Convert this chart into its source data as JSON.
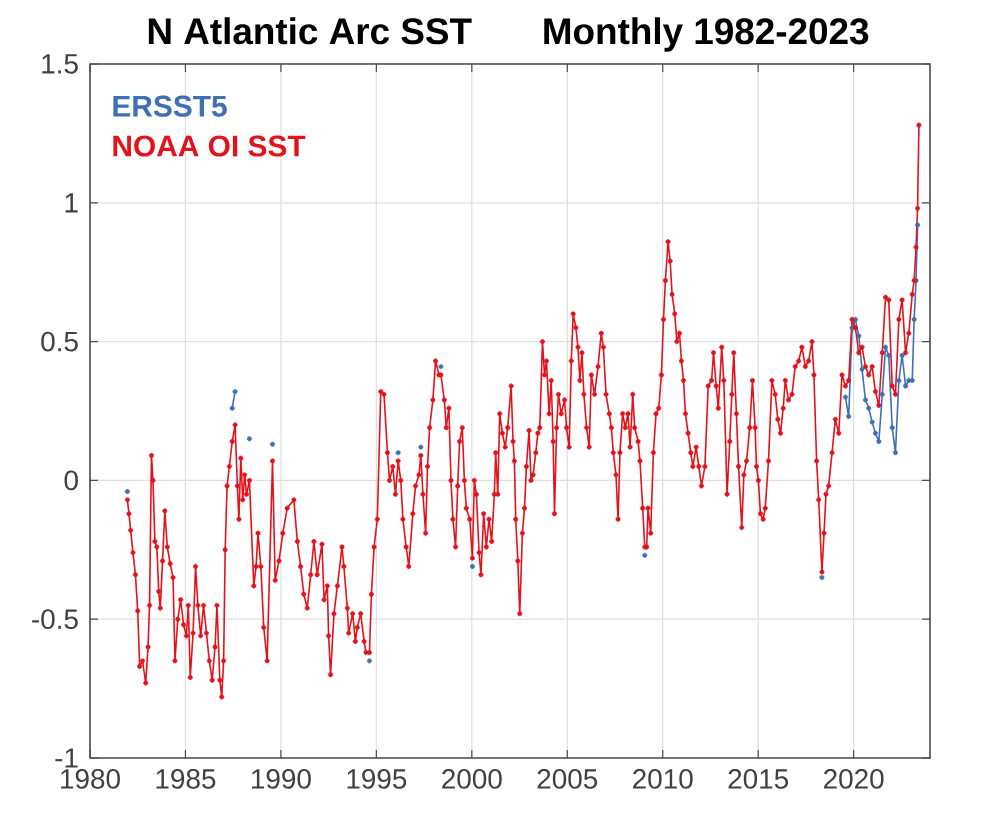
{
  "chart_data": {
    "type": "line",
    "title": "N Atlantic Arc SST",
    "subtitle": "Monthly 1982-2023",
    "x": [
      1981.96,
      1982.04,
      1982.13,
      1982.25,
      1982.38,
      1982.5,
      1982.6,
      1982.75,
      1982.92,
      1983.04,
      1983.12,
      1983.22,
      1983.3,
      1983.4,
      1983.5,
      1983.6,
      1983.68,
      1983.8,
      1983.92,
      1984.05,
      1984.2,
      1984.35,
      1984.45,
      1984.6,
      1984.75,
      1984.9,
      1985.05,
      1985.15,
      1985.25,
      1985.4,
      1985.53,
      1985.65,
      1985.8,
      1985.95,
      1986.1,
      1986.25,
      1986.4,
      1986.55,
      1986.65,
      1986.8,
      1986.9,
      1987.0,
      1987.08,
      1987.18,
      1987.3,
      1987.45,
      1987.6,
      1987.72,
      1987.8,
      1987.9,
      1988.0,
      1988.1,
      1988.2,
      1988.35,
      1988.58,
      1988.7,
      1988.8,
      1988.95,
      1989.1,
      1989.28,
      1989.56,
      1989.7,
      1989.9,
      1990.1,
      1990.33,
      1990.68,
      1990.86,
      1991.03,
      1991.2,
      1991.38,
      1991.56,
      1991.73,
      1991.9,
      1992.15,
      1992.26,
      1992.43,
      1992.5,
      1992.6,
      1992.78,
      1992.96,
      1993.2,
      1993.3,
      1993.48,
      1993.55,
      1993.76,
      1993.9,
      1994.0,
      1994.18,
      1994.36,
      1994.46,
      1994.64,
      1994.74,
      1994.88,
      1995.05,
      1995.23,
      1995.4,
      1995.58,
      1995.69,
      1995.86,
      1996.0,
      1996.14,
      1996.28,
      1996.39,
      1996.56,
      1996.7,
      1996.91,
      1997.05,
      1997.23,
      1997.33,
      1997.44,
      1997.58,
      1997.68,
      1997.79,
      1997.96,
      1998.1,
      1998.28,
      1998.38,
      1998.56,
      1998.66,
      1998.8,
      1998.91,
      1999.01,
      1999.15,
      1999.26,
      1999.36,
      1999.5,
      1999.61,
      1999.71,
      1999.89,
      2000.03,
      2000.13,
      2000.24,
      2000.38,
      2000.48,
      2000.62,
      2000.76,
      2000.9,
      2001.04,
      2001.18,
      2001.25,
      2001.36,
      2001.46,
      2001.6,
      2001.75,
      2001.88,
      2002.06,
      2002.16,
      2002.23,
      2002.3,
      2002.41,
      2002.51,
      2002.65,
      2002.76,
      2002.86,
      2003.0,
      2003.1,
      2003.21,
      2003.35,
      2003.46,
      2003.56,
      2003.7,
      2003.81,
      2003.91,
      2004.05,
      2004.16,
      2004.26,
      2004.33,
      2004.44,
      2004.54,
      2004.68,
      2004.86,
      2004.96,
      2005.1,
      2005.21,
      2005.31,
      2005.45,
      2005.56,
      2005.66,
      2005.77,
      2005.87,
      2006.01,
      2006.15,
      2006.26,
      2006.43,
      2006.61,
      2006.78,
      2006.89,
      2007.03,
      2007.2,
      2007.31,
      2007.41,
      2007.55,
      2007.66,
      2007.76,
      2007.9,
      2008.04,
      2008.18,
      2008.29,
      2008.43,
      2008.53,
      2008.71,
      2008.81,
      2008.95,
      2009.06,
      2009.16,
      2009.23,
      2009.37,
      2009.51,
      2009.65,
      2009.79,
      2009.93,
      2010.04,
      2010.14,
      2010.28,
      2010.39,
      2010.49,
      2010.63,
      2010.74,
      2010.88,
      2010.98,
      2011.09,
      2011.19,
      2011.33,
      2011.47,
      2011.58,
      2011.75,
      2011.89,
      2012.03,
      2012.21,
      2012.38,
      2012.56,
      2012.66,
      2012.8,
      2012.91,
      2013.09,
      2013.2,
      2013.37,
      2013.51,
      2013.62,
      2013.72,
      2013.86,
      2013.97,
      2014.14,
      2014.25,
      2014.39,
      2014.56,
      2014.7,
      2014.84,
      2014.91,
      2015.01,
      2015.12,
      2015.26,
      2015.37,
      2015.54,
      2015.72,
      2015.89,
      2016.03,
      2016.17,
      2016.31,
      2016.42,
      2016.59,
      2016.77,
      2016.94,
      2017.12,
      2017.29,
      2017.47,
      2017.64,
      2017.82,
      2017.92,
      2018.06,
      2018.17,
      2018.34,
      2018.45,
      2018.55,
      2018.69,
      2018.87,
      2019.04,
      2019.22,
      2019.39,
      2019.57,
      2019.74,
      2019.92,
      2020.09,
      2020.27,
      2020.44,
      2020.62,
      2020.79,
      2020.97,
      2021.14,
      2021.32,
      2021.5,
      2021.67,
      2021.84,
      2022.02,
      2022.19,
      2022.37,
      2022.54,
      2022.72,
      2022.89,
      2023.07,
      2023.17,
      2023.27,
      2023.35,
      2023.42
    ],
    "series": [
      {
        "name": "ERSST5",
        "color": "#3f6fb5",
        "x": [
          1981.96,
          1982.04,
          1987.45,
          1987.6,
          1987.72,
          1988.35,
          1988.58,
          1989.56,
          1989.7,
          1994.64,
          1994.74,
          1996.14,
          1996.28,
          1997.33,
          1997.44,
          1998.38,
          1998.56,
          2000.03,
          2000.13,
          2009.06,
          2009.16,
          2018.34,
          2018.45,
          2019.57,
          2019.74,
          2019.92,
          2020.09,
          2020.27,
          2020.44,
          2020.62,
          2020.79,
          2020.97,
          2021.14,
          2021.32,
          2021.5,
          2021.67,
          2021.84,
          2022.02,
          2022.19,
          2022.37,
          2022.54,
          2022.72,
          2022.89,
          2023.07,
          2023.17,
          2023.27,
          2023.35
        ],
        "values": [
          -0.04,
          null,
          0.26,
          0.32,
          null,
          0.15,
          null,
          0.13,
          null,
          -0.65,
          null,
          0.1,
          null,
          0.12,
          null,
          0.41,
          null,
          -0.31,
          null,
          -0.27,
          null,
          -0.35,
          null,
          0.3,
          0.23,
          0.55,
          0.58,
          0.52,
          0.4,
          0.29,
          0.26,
          0.21,
          0.17,
          0.14,
          0.31,
          0.48,
          0.45,
          0.19,
          0.1,
          0.36,
          0.45,
          0.34,
          0.36,
          0.36,
          0.58,
          0.72,
          0.92
        ]
      },
      {
        "name": "NOAA OI SST",
        "color": "#e3121b",
        "values": [
          -0.07,
          -0.12,
          -0.18,
          -0.26,
          -0.34,
          -0.47,
          -0.67,
          -0.65,
          -0.73,
          -0.6,
          -0.45,
          0.09,
          0.0,
          -0.22,
          -0.24,
          -0.4,
          -0.46,
          -0.29,
          -0.11,
          -0.24,
          -0.3,
          -0.35,
          -0.65,
          -0.5,
          -0.43,
          -0.52,
          -0.56,
          -0.45,
          -0.71,
          -0.55,
          -0.31,
          -0.45,
          -0.56,
          -0.45,
          -0.55,
          -0.65,
          -0.72,
          -0.6,
          -0.45,
          -0.72,
          -0.78,
          -0.65,
          -0.25,
          -0.02,
          0.05,
          0.14,
          0.2,
          -0.02,
          -0.14,
          0.08,
          -0.07,
          0.02,
          -0.05,
          0.0,
          -0.38,
          -0.31,
          -0.19,
          -0.31,
          -0.53,
          -0.65,
          0.07,
          -0.36,
          -0.29,
          -0.19,
          -0.1,
          -0.07,
          -0.22,
          -0.31,
          -0.41,
          -0.46,
          -0.34,
          -0.22,
          -0.34,
          -0.23,
          -0.43,
          -0.38,
          -0.56,
          -0.7,
          -0.48,
          -0.38,
          -0.24,
          -0.31,
          -0.46,
          -0.55,
          -0.48,
          -0.58,
          -0.53,
          -0.48,
          -0.58,
          -0.62,
          -0.62,
          -0.41,
          -0.24,
          -0.14,
          0.32,
          0.31,
          0.1,
          0.0,
          0.05,
          -0.05,
          0.07,
          0.0,
          -0.14,
          -0.24,
          -0.31,
          -0.12,
          -0.02,
          0.02,
          0.09,
          -0.05,
          -0.19,
          0.05,
          0.19,
          0.29,
          0.43,
          0.38,
          0.38,
          0.29,
          0.19,
          0.26,
          0.0,
          -0.14,
          -0.24,
          -0.02,
          0.14,
          0.19,
          0.0,
          -0.1,
          -0.14,
          -0.28,
          0.0,
          -0.05,
          -0.26,
          -0.34,
          -0.12,
          -0.24,
          -0.14,
          -0.22,
          -0.05,
          0.1,
          -0.05,
          0.24,
          0.17,
          0.12,
          0.19,
          0.34,
          0.14,
          0.07,
          -0.14,
          -0.29,
          -0.48,
          -0.19,
          -0.1,
          0.05,
          0.18,
          0.0,
          0.02,
          0.1,
          0.17,
          0.19,
          0.5,
          0.38,
          0.43,
          0.24,
          0.36,
          0.14,
          -0.12,
          0.19,
          0.31,
          0.24,
          0.29,
          0.19,
          0.12,
          0.43,
          0.6,
          0.55,
          0.48,
          0.36,
          0.46,
          0.31,
          0.19,
          0.12,
          0.38,
          0.31,
          0.41,
          0.53,
          0.48,
          0.31,
          0.24,
          0.19,
          0.1,
          0.02,
          -0.14,
          0.1,
          0.24,
          0.19,
          0.24,
          0.12,
          0.31,
          0.19,
          0.14,
          0.07,
          -0.1,
          -0.24,
          -0.24,
          -0.1,
          -0.19,
          0.1,
          0.24,
          0.26,
          0.38,
          0.58,
          0.72,
          0.86,
          0.79,
          0.67,
          0.6,
          0.5,
          0.53,
          0.43,
          0.36,
          0.24,
          0.17,
          0.1,
          0.05,
          0.12,
          0.05,
          -0.02,
          0.05,
          0.34,
          0.36,
          0.46,
          0.34,
          0.26,
          0.48,
          0.36,
          -0.05,
          0.14,
          0.31,
          0.46,
          0.24,
          0.05,
          -0.17,
          0.02,
          0.07,
          0.19,
          0.36,
          0.19,
          0.05,
          0.0,
          -0.12,
          -0.14,
          -0.1,
          0.07,
          0.36,
          0.31,
          0.22,
          0.17,
          0.26,
          0.36,
          0.29,
          0.31,
          0.41,
          0.43,
          0.48,
          0.41,
          0.43,
          0.5,
          0.38,
          0.07,
          -0.07,
          -0.33,
          -0.19,
          -0.05,
          -0.02,
          0.1,
          0.22,
          0.17,
          0.38,
          0.34,
          0.36,
          0.58,
          0.55,
          0.46,
          0.48,
          0.41,
          0.38,
          0.41,
          0.32,
          0.27,
          0.46,
          0.66,
          0.65,
          0.34,
          0.31,
          0.58,
          0.65,
          0.46,
          0.53,
          0.67,
          0.72,
          0.84,
          0.98,
          1.28
        ]
      }
    ],
    "xlim": [
      1980,
      2024
    ],
    "ylim": [
      -1,
      1.5
    ],
    "xticks": [
      1980,
      1985,
      1990,
      1995,
      2000,
      2005,
      2010,
      2015,
      2020
    ],
    "yticks": [
      -1,
      -0.5,
      0,
      0.5,
      1,
      1.5
    ],
    "grid": true,
    "legend": "top left",
    "marker": "circle",
    "line_style": "solid"
  }
}
